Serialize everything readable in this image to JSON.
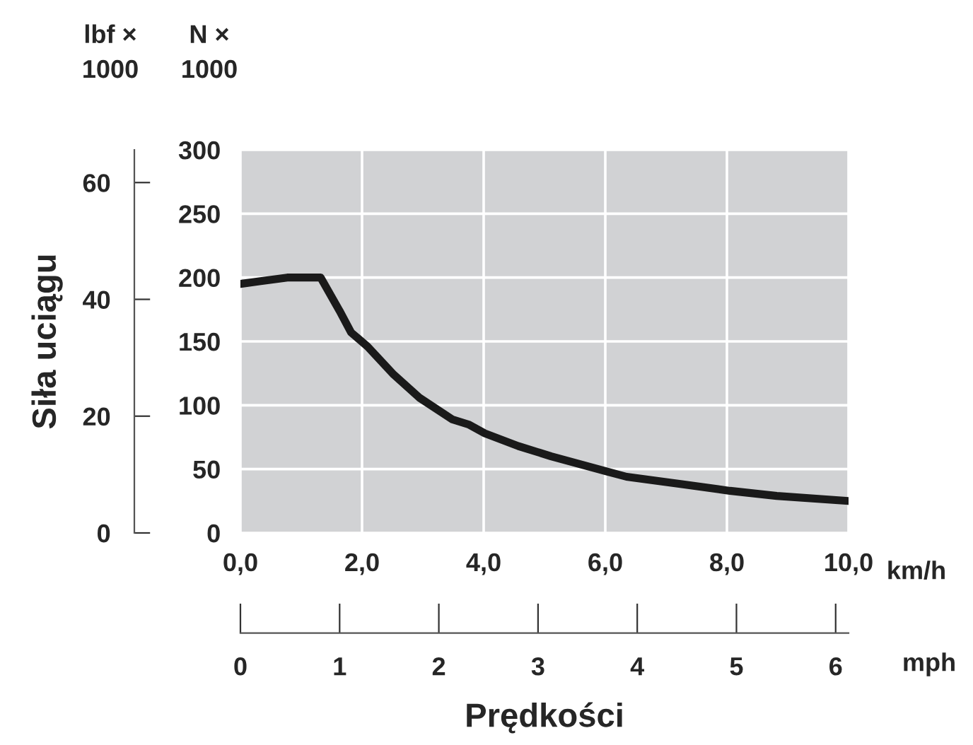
{
  "chart_data": {
    "type": "line",
    "xlabel": "Prędkości",
    "ylabel": "Siła uciągu",
    "x2label": "mph",
    "annotations": [
      "lbf ×\n1000",
      "N ×\n1000",
      "km/h"
    ],
    "x": [
      0,
      0.31,
      0.77,
      1.32,
      1.63,
      1.82,
      2.09,
      2.52,
      2.94,
      3.48,
      3.75,
      4.02,
      4.57,
      5.11,
      5.57,
      6.04,
      6.35,
      7.28,
      8.05,
      8.82,
      10.0
    ],
    "series": [
      {
        "axis": "y2",
        "color": "#1a1a1a",
        "values": [
          195,
          197,
          200,
          200,
          174,
          157,
          146,
          124,
          106,
          89,
          85,
          78,
          68,
          60,
          54,
          48,
          44,
          38,
          33,
          29,
          25
        ]
      }
    ],
    "xlim": [
      0,
      10
    ],
    "xticks": [
      {
        "value": 0,
        "label": "0,0"
      },
      {
        "value": 2,
        "label": "2,0"
      },
      {
        "value": 4,
        "label": "4,0"
      },
      {
        "value": 6,
        "label": "6,0"
      },
      {
        "value": 8,
        "label": "8,0"
      },
      {
        "value": 10,
        "label": "10,0"
      }
    ],
    "ylim": [
      0,
      65.6
    ],
    "yticks": [
      0,
      20,
      40,
      60
    ],
    "y2lim": [
      0,
      300
    ],
    "y2ticks": [
      0,
      50,
      100,
      150,
      200,
      250,
      300
    ],
    "x2lim": [
      0,
      6.13
    ],
    "x2ticks": [
      0,
      1,
      2,
      3,
      4,
      5,
      6
    ],
    "grid": true,
    "line_style": "solid",
    "marker": "none"
  }
}
